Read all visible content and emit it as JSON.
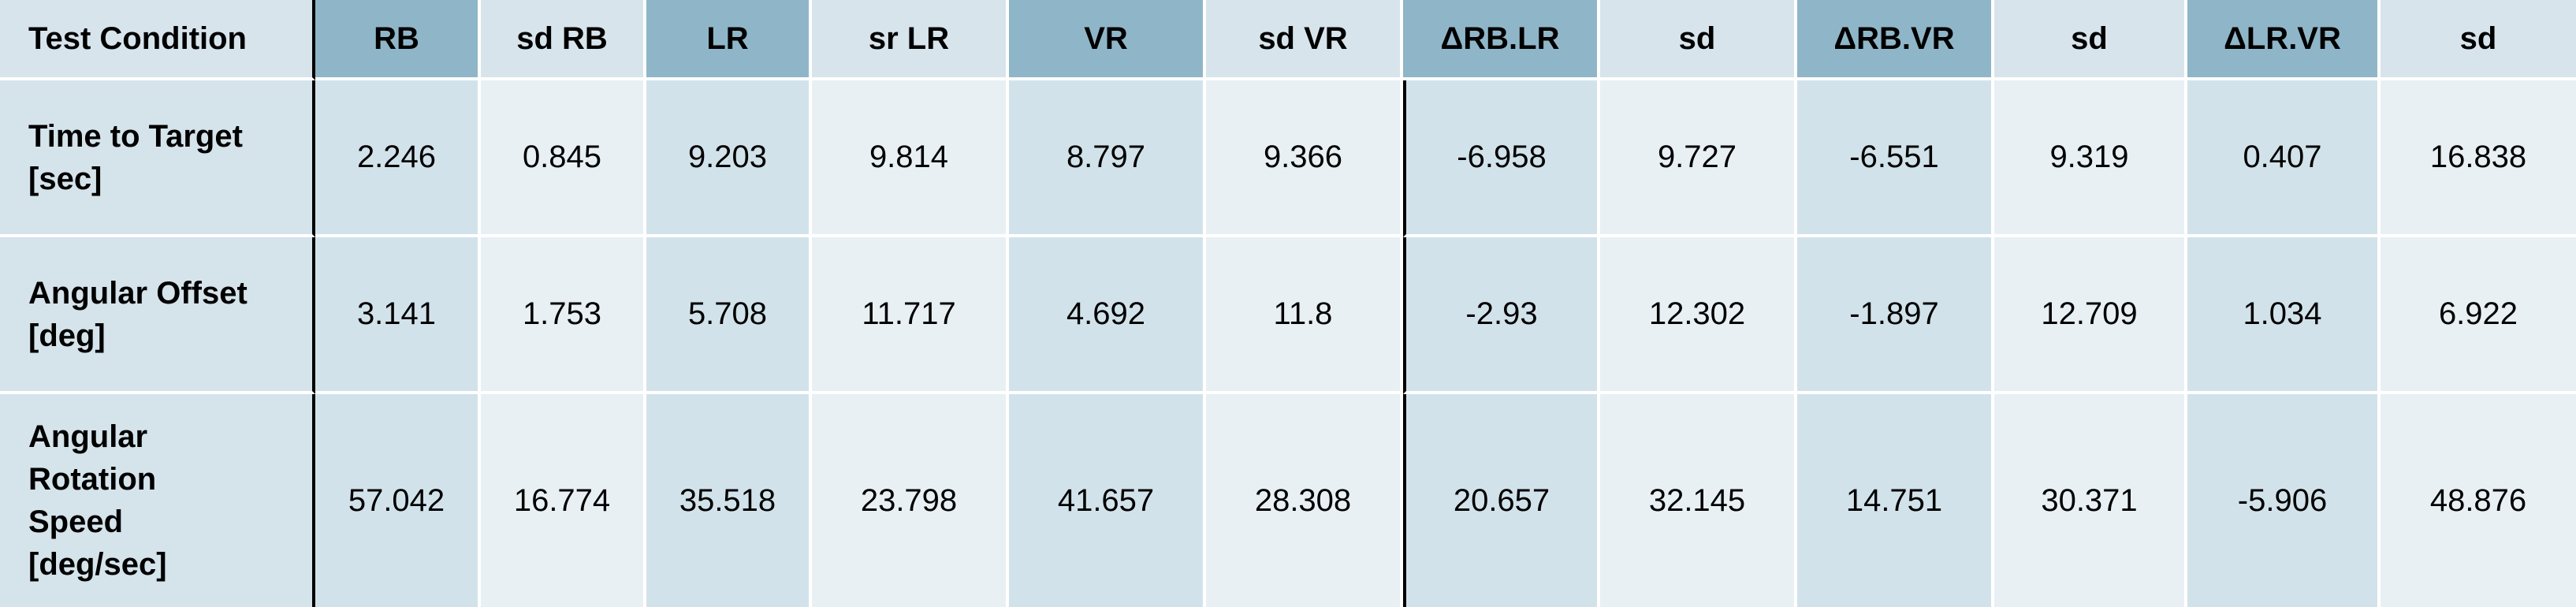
{
  "table": {
    "headers": [
      "Test Condition",
      "RB",
      "sd RB",
      "LR",
      "sr LR",
      "VR",
      "sd VR",
      "ΔRB.LR",
      "sd",
      "ΔRB.VR",
      "sd",
      "ΔLR.VR",
      "sd"
    ],
    "rows": [
      {
        "label_lines": [
          "Time to Target",
          "[sec]"
        ],
        "values": [
          "2.246",
          "0.845",
          "9.203",
          "9.814",
          "8.797",
          "9.366",
          "-6.958",
          "9.727",
          "-6.551",
          "9.319",
          "0.407",
          "16.838"
        ]
      },
      {
        "label_lines": [
          "Angular Offset",
          "[deg]"
        ],
        "values": [
          "3.141",
          "1.753",
          "5.708",
          "11.717",
          "4.692",
          "11.8",
          "-2.93",
          "12.302",
          "-1.897",
          "12.709",
          "1.034",
          "6.922"
        ]
      },
      {
        "label_lines": [
          "Angular",
          "Rotation",
          "Speed",
          "[deg/sec]"
        ],
        "values": [
          "57.042",
          "16.774",
          "35.518",
          "23.798",
          "41.657",
          "28.308",
          "20.657",
          "32.145",
          "14.751",
          "30.371",
          "-5.906",
          "48.876"
        ]
      }
    ]
  },
  "colors": {
    "header_dark": "#8fb6c8",
    "header_light": "#d7e4ec",
    "body_dark": "#d2e2ea",
    "body_light": "#e8f0f4",
    "separator": "#000000"
  }
}
